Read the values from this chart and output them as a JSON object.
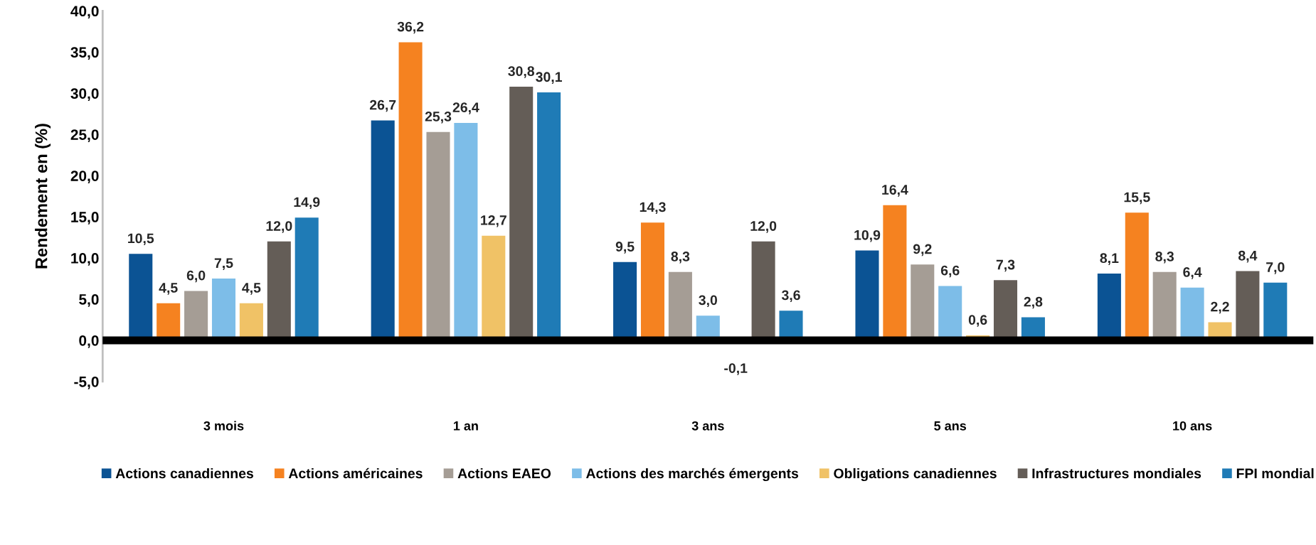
{
  "chart_data": {
    "type": "bar",
    "ylabel": "Rendement en (%)",
    "categories": [
      "3 mois",
      "1 an",
      "3 ans",
      "5 ans",
      "10 ans"
    ],
    "series": [
      {
        "name": "Actions canadiennes",
        "color": "#0b5394",
        "values": [
          10.5,
          26.7,
          9.5,
          10.9,
          8.1
        ],
        "value_labels": [
          "10,5",
          "26,7",
          "9,5",
          "10,9",
          "8,1"
        ]
      },
      {
        "name": "Actions américaines",
        "color": "#f58220",
        "values": [
          4.5,
          36.2,
          14.3,
          16.4,
          15.5
        ],
        "value_labels": [
          "4,5",
          "36,2",
          "14,3",
          "16,4",
          "15,5"
        ]
      },
      {
        "name": "Actions EAEO",
        "color": "#a59d95",
        "values": [
          6.0,
          25.3,
          8.3,
          9.2,
          8.3
        ],
        "value_labels": [
          "6,0",
          "25,3",
          "8,3",
          "9,2",
          "8,3"
        ]
      },
      {
        "name": "Actions des marchés émergents",
        "color": "#7dbde8",
        "values": [
          7.5,
          26.4,
          3.0,
          6.6,
          6.4
        ],
        "value_labels": [
          "7,5",
          "26,4",
          "3,0",
          "6,6",
          "6,4"
        ]
      },
      {
        "name": "Obligations canadiennes",
        "color": "#f0c266",
        "values": [
          4.5,
          12.7,
          -0.1,
          0.6,
          2.2
        ],
        "value_labels": [
          "4,5",
          "12,7",
          "-0,1",
          "0,6",
          "2,2"
        ]
      },
      {
        "name": "Infrastructures mondiales",
        "color": "#645d57",
        "values": [
          12.0,
          30.8,
          12.0,
          7.3,
          8.4
        ],
        "value_labels": [
          "12,0",
          "30,8",
          "12,0",
          "7,3",
          "8,4"
        ]
      },
      {
        "name": "FPI mondial",
        "color": "#1f7bb6",
        "values": [
          14.9,
          30.1,
          3.6,
          2.8,
          7.0
        ],
        "value_labels": [
          "14,9",
          "30,1",
          "3,6",
          "2,8",
          "7,0"
        ]
      }
    ],
    "ylim": [
      -5,
      40
    ],
    "yticks": [
      {
        "value": -5,
        "label": "-5,0"
      },
      {
        "value": 0,
        "label": "0,0"
      },
      {
        "value": 5,
        "label": "5,0"
      },
      {
        "value": 10,
        "label": "10,0"
      },
      {
        "value": 15,
        "label": "15,0"
      },
      {
        "value": 20,
        "label": "20,0"
      },
      {
        "value": 25,
        "label": "25,0"
      },
      {
        "value": 30,
        "label": "30,0"
      },
      {
        "value": 35,
        "label": "35,0"
      },
      {
        "value": 40,
        "label": "40,0"
      }
    ],
    "ref_lines": [
      {
        "axis": "y",
        "value": 0,
        "color": "#000000"
      }
    ],
    "grid": false,
    "legend": "bottom"
  }
}
